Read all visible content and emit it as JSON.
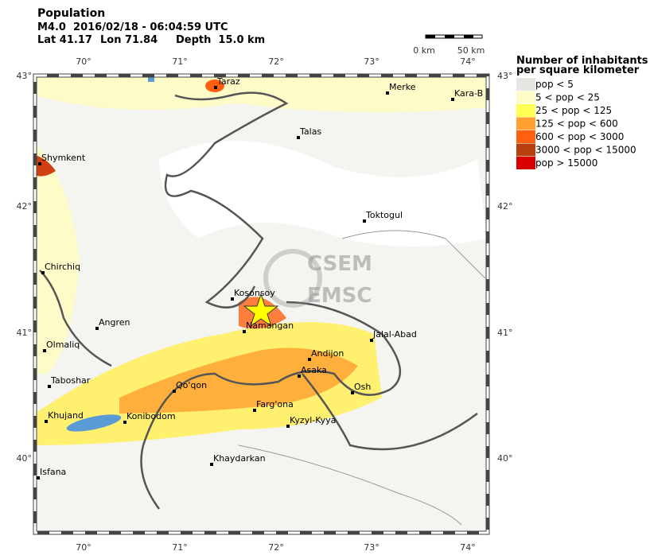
{
  "header": {
    "title": "Population",
    "event": "M4.0  2016/02/18 - 06:04:59 UTC",
    "lat": "Lat 41.17",
    "lon": "Lon 71.84",
    "depth": "Depth  15.0 km"
  },
  "scale": {
    "start": "0 km",
    "end": "50 km"
  },
  "map": {
    "lon_ticks": [
      "70°",
      "71°",
      "72°",
      "73°",
      "74°"
    ],
    "lat_ticks": [
      "43°",
      "42°",
      "41°",
      "40°"
    ],
    "watermark": [
      "CSEM",
      "EMSC"
    ],
    "cities": [
      "Taraz",
      "Merke",
      "Kara-B",
      "Talas",
      "Shymkent",
      "Toktogul",
      "Chirchiq",
      "Kosonsoy",
      "Namangan",
      "Angren",
      "Olmaliq",
      "Jalal-Abad",
      "Andijon",
      "Asaka",
      "Taboshar",
      "Qo'qon",
      "Osh",
      "Khujand",
      "Konibodom",
      "Farg'ona",
      "Kyzyl-Kyya",
      "Khaydarkan",
      "Isfana"
    ]
  },
  "legend": {
    "title": [
      "Number of inhabitants",
      "per square kilometer"
    ],
    "entries": [
      "pop < 5",
      "5 < pop < 25",
      "25 < pop < 125",
      "125 < pop < 600",
      "600 < pop < 3000",
      "3000 < pop < 15000",
      "pop > 15000"
    ]
  }
}
